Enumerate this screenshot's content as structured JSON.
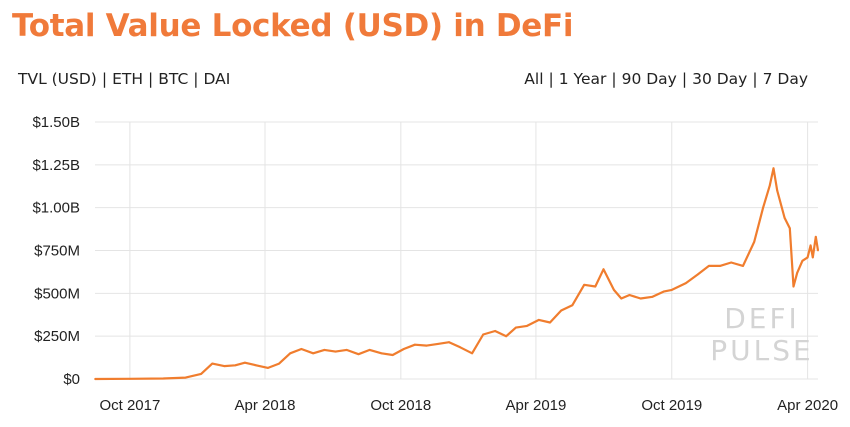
{
  "header": {
    "title": "Total Value Locked (USD) in DeFi"
  },
  "metric_tabs": [
    {
      "label": "TVL (USD)",
      "active": true
    },
    {
      "label": "ETH",
      "active": false
    },
    {
      "label": "BTC",
      "active": false
    },
    {
      "label": "DAI",
      "active": false
    }
  ],
  "range_tabs": [
    {
      "label": "All",
      "active": true
    },
    {
      "label": "1 Year",
      "active": false
    },
    {
      "label": "90 Day",
      "active": false
    },
    {
      "label": "30 Day",
      "active": false
    },
    {
      "label": "7 Day",
      "active": false
    }
  ],
  "colors": {
    "accent": "#f07a3a",
    "line": "#f07d2e",
    "watermark": "#d4d4d4"
  },
  "watermark": {
    "line1": "DEFI",
    "line2": "PULSE"
  },
  "chart_data": {
    "type": "line",
    "title": "",
    "xlabel": "",
    "ylabel": "",
    "grid": true,
    "x_type": "date",
    "xlim": [
      "2017-08-15",
      "2020-04-15"
    ],
    "ylim": [
      0,
      1500000000
    ],
    "yticks": [
      {
        "value": 0,
        "label": "$0"
      },
      {
        "value": 250000000,
        "label": "$250M"
      },
      {
        "value": 500000000,
        "label": "$500M"
      },
      {
        "value": 750000000,
        "label": "$750M"
      },
      {
        "value": 1000000000,
        "label": "$1.00B"
      },
      {
        "value": 1250000000,
        "label": "$1.25B"
      },
      {
        "value": 1500000000,
        "label": "$1.50B"
      }
    ],
    "xticks": [
      {
        "value": "2017-10-01",
        "label": "Oct 2017"
      },
      {
        "value": "2018-04-01",
        "label": "Apr 2018"
      },
      {
        "value": "2018-10-01",
        "label": "Oct 2018"
      },
      {
        "value": "2019-04-01",
        "label": "Apr 2019"
      },
      {
        "value": "2019-10-01",
        "label": "Oct 2019"
      },
      {
        "value": "2020-04-01",
        "label": "Apr 2020"
      }
    ],
    "series": [
      {
        "name": "",
        "points": [
          [
            "2017-08-15",
            0
          ],
          [
            "2017-10-01",
            1000000
          ],
          [
            "2017-11-15",
            3000000
          ],
          [
            "2017-12-15",
            8000000
          ],
          [
            "2018-01-05",
            30000000
          ],
          [
            "2018-01-20",
            90000000
          ],
          [
            "2018-02-05",
            75000000
          ],
          [
            "2018-02-20",
            80000000
          ],
          [
            "2018-03-05",
            95000000
          ],
          [
            "2018-03-20",
            80000000
          ],
          [
            "2018-04-05",
            65000000
          ],
          [
            "2018-04-20",
            90000000
          ],
          [
            "2018-05-05",
            150000000
          ],
          [
            "2018-05-20",
            175000000
          ],
          [
            "2018-06-05",
            150000000
          ],
          [
            "2018-06-20",
            170000000
          ],
          [
            "2018-07-05",
            160000000
          ],
          [
            "2018-07-20",
            170000000
          ],
          [
            "2018-08-05",
            145000000
          ],
          [
            "2018-08-20",
            170000000
          ],
          [
            "2018-09-05",
            150000000
          ],
          [
            "2018-09-20",
            140000000
          ],
          [
            "2018-10-05",
            175000000
          ],
          [
            "2018-10-20",
            200000000
          ],
          [
            "2018-11-05",
            195000000
          ],
          [
            "2018-11-20",
            205000000
          ],
          [
            "2018-12-05",
            215000000
          ],
          [
            "2018-12-20",
            185000000
          ],
          [
            "2019-01-05",
            150000000
          ],
          [
            "2019-01-20",
            260000000
          ],
          [
            "2019-02-05",
            280000000
          ],
          [
            "2019-02-20",
            250000000
          ],
          [
            "2019-03-05",
            300000000
          ],
          [
            "2019-03-20",
            310000000
          ],
          [
            "2019-04-05",
            345000000
          ],
          [
            "2019-04-20",
            330000000
          ],
          [
            "2019-05-05",
            400000000
          ],
          [
            "2019-05-20",
            430000000
          ],
          [
            "2019-06-05",
            550000000
          ],
          [
            "2019-06-20",
            540000000
          ],
          [
            "2019-07-01",
            640000000
          ],
          [
            "2019-07-15",
            520000000
          ],
          [
            "2019-07-25",
            470000000
          ],
          [
            "2019-08-05",
            490000000
          ],
          [
            "2019-08-20",
            470000000
          ],
          [
            "2019-09-05",
            480000000
          ],
          [
            "2019-09-20",
            510000000
          ],
          [
            "2019-10-01",
            520000000
          ],
          [
            "2019-10-20",
            560000000
          ],
          [
            "2019-11-05",
            610000000
          ],
          [
            "2019-11-20",
            660000000
          ],
          [
            "2019-12-05",
            660000000
          ],
          [
            "2019-12-20",
            680000000
          ],
          [
            "2020-01-05",
            660000000
          ],
          [
            "2020-01-20",
            800000000
          ],
          [
            "2020-02-01",
            1000000000
          ],
          [
            "2020-02-10",
            1130000000
          ],
          [
            "2020-02-15",
            1230000000
          ],
          [
            "2020-02-20",
            1100000000
          ],
          [
            "2020-03-01",
            940000000
          ],
          [
            "2020-03-08",
            880000000
          ],
          [
            "2020-03-13",
            540000000
          ],
          [
            "2020-03-18",
            620000000
          ],
          [
            "2020-03-25",
            690000000
          ],
          [
            "2020-04-01",
            710000000
          ],
          [
            "2020-04-05",
            780000000
          ],
          [
            "2020-04-08",
            710000000
          ],
          [
            "2020-04-12",
            830000000
          ],
          [
            "2020-04-15",
            750000000
          ]
        ]
      }
    ]
  }
}
